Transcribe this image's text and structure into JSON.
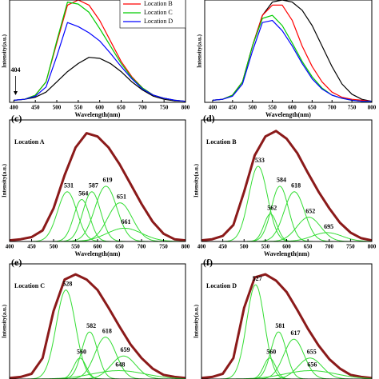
{
  "chart_data": [
    {
      "type": "line",
      "xlabel": "Wavelength(nm)",
      "ylabel": "Intensity(a.u.)",
      "x": [
        400,
        425,
        450,
        475,
        500,
        525,
        550,
        575,
        600,
        625,
        650,
        675,
        700,
        725,
        750,
        775,
        800
      ],
      "xlim": [
        390,
        800
      ],
      "xticks": [
        400,
        450,
        500,
        550,
        600,
        650,
        700,
        750,
        800
      ],
      "ylim": [
        0,
        1.0
      ],
      "annotation": {
        "text": "404",
        "x": 404
      },
      "legend": "upper right",
      "series": [
        {
          "color": "#000000",
          "values": [
            0.02,
            0.03,
            0.05,
            0.1,
            0.2,
            0.3,
            0.38,
            0.44,
            0.43,
            0.38,
            0.3,
            0.2,
            0.12,
            0.06,
            0.03,
            0.015,
            0.01
          ]
        },
        {
          "name": "Location B",
          "color": "#ff0000",
          "values": [
            0.02,
            0.03,
            0.07,
            0.2,
            0.58,
            0.95,
            1.0,
            0.95,
            0.8,
            0.6,
            0.4,
            0.25,
            0.14,
            0.07,
            0.04,
            0.02,
            0.01
          ]
        },
        {
          "name": "Location C",
          "color": "#00cc00",
          "values": [
            0.02,
            0.03,
            0.07,
            0.2,
            0.6,
            0.98,
            0.96,
            0.88,
            0.72,
            0.55,
            0.38,
            0.24,
            0.14,
            0.07,
            0.04,
            0.02,
            0.01
          ]
        },
        {
          "name": "Location D",
          "color": "#0000ff",
          "values": [
            0.02,
            0.03,
            0.06,
            0.15,
            0.45,
            0.78,
            0.74,
            0.68,
            0.6,
            0.48,
            0.35,
            0.23,
            0.13,
            0.07,
            0.04,
            0.02,
            0.01
          ]
        }
      ]
    },
    {
      "type": "line",
      "xlabel": "Wavelength(nm)",
      "ylabel": "Intensity(a.u.)",
      "x": [
        400,
        425,
        450,
        475,
        500,
        525,
        550,
        575,
        600,
        625,
        650,
        675,
        700,
        725,
        750,
        775,
        800
      ],
      "xlim": [
        380,
        800
      ],
      "xticks": [
        400,
        450,
        500,
        550,
        600,
        650,
        700,
        750,
        800
      ],
      "ylim": [
        0,
        1.0
      ],
      "series": [
        {
          "color": "#000000",
          "values": [
            0.02,
            0.03,
            0.07,
            0.2,
            0.55,
            0.85,
            0.98,
            1.0,
            0.98,
            0.9,
            0.75,
            0.55,
            0.35,
            0.18,
            0.08,
            0.03,
            0.01
          ]
        },
        {
          "color": "#ff0000",
          "values": [
            0.02,
            0.03,
            0.07,
            0.2,
            0.55,
            0.85,
            0.95,
            0.95,
            0.8,
            0.55,
            0.35,
            0.2,
            0.1,
            0.05,
            0.03,
            0.02,
            0.01
          ]
        },
        {
          "color": "#00cc00",
          "values": [
            0.02,
            0.03,
            0.07,
            0.2,
            0.55,
            0.82,
            0.85,
            0.75,
            0.58,
            0.4,
            0.25,
            0.14,
            0.07,
            0.04,
            0.02,
            0.01,
            0.01
          ]
        },
        {
          "color": "#0000ff",
          "values": [
            0.02,
            0.03,
            0.06,
            0.18,
            0.5,
            0.78,
            0.8,
            0.7,
            0.55,
            0.38,
            0.23,
            0.13,
            0.07,
            0.04,
            0.02,
            0.01,
            0.01
          ]
        }
      ]
    },
    {
      "type": "fit",
      "panel_label": "(c)",
      "location": "Location A",
      "xlabel": "Wavelength(nm)",
      "ylabel": "Intensity(a.u.)",
      "x": [
        400,
        425,
        450,
        475,
        500,
        525,
        550,
        575,
        600,
        625,
        650,
        675,
        700,
        725,
        750,
        775,
        800
      ],
      "xlim": [
        400,
        800
      ],
      "xticks": [
        400,
        450,
        500,
        550,
        600,
        650,
        700,
        750,
        800
      ],
      "ylim": [
        0,
        1.1
      ],
      "series": [
        {
          "color": "#8b1a1a",
          "values": [
            0.01,
            0.02,
            0.04,
            0.1,
            0.3,
            0.6,
            0.85,
            0.98,
            0.95,
            0.85,
            0.7,
            0.52,
            0.34,
            0.18,
            0.07,
            0.02,
            0.01
          ]
        }
      ],
      "peak_color": "#33dd33",
      "peaks": [
        {
          "center": 531,
          "height": 0.45,
          "width": 22
        },
        {
          "center": 564,
          "height": 0.38,
          "width": 18
        },
        {
          "center": 587,
          "height": 0.45,
          "width": 20
        },
        {
          "center": 619,
          "height": 0.5,
          "width": 25
        },
        {
          "center": 651,
          "height": 0.35,
          "width": 28
        },
        {
          "center": 661,
          "height": 0.12,
          "width": 40
        }
      ]
    },
    {
      "type": "fit",
      "panel_label": "(d)",
      "location": "Location B",
      "xlabel": "Wavelength(nm)",
      "ylabel": "Intensity(a.u.)",
      "x": [
        400,
        425,
        450,
        475,
        500,
        525,
        550,
        575,
        600,
        625,
        650,
        675,
        700,
        725,
        750,
        775,
        800
      ],
      "xlim": [
        400,
        800
      ],
      "xticks": [
        400,
        450,
        500,
        550,
        600,
        650,
        700,
        750,
        800
      ],
      "ylim": [
        0,
        1.1
      ],
      "series": [
        {
          "color": "#8b1a1a",
          "values": [
            0.01,
            0.02,
            0.05,
            0.15,
            0.45,
            0.78,
            0.95,
            1.0,
            0.93,
            0.8,
            0.62,
            0.45,
            0.3,
            0.17,
            0.08,
            0.03,
            0.01
          ]
        }
      ],
      "peak_color": "#33dd33",
      "peaks": [
        {
          "center": 533,
          "height": 0.68,
          "width": 22
        },
        {
          "center": 562,
          "height": 0.25,
          "width": 15
        },
        {
          "center": 584,
          "height": 0.5,
          "width": 20
        },
        {
          "center": 618,
          "height": 0.45,
          "width": 24
        },
        {
          "center": 652,
          "height": 0.22,
          "width": 28
        },
        {
          "center": 695,
          "height": 0.08,
          "width": 35
        }
      ]
    },
    {
      "type": "fit",
      "panel_label": "(e)",
      "location": "Location C",
      "ylabel": "Intensity(a.u.)",
      "x": [
        400,
        425,
        450,
        475,
        500,
        525,
        550,
        575,
        600,
        625,
        650,
        675,
        700,
        725,
        750,
        775,
        800
      ],
      "xlim": [
        400,
        800
      ],
      "ylim": [
        0,
        1.1
      ],
      "series": [
        {
          "color": "#8b1a1a",
          "values": [
            0.01,
            0.02,
            0.05,
            0.2,
            0.65,
            0.95,
            1.0,
            0.95,
            0.85,
            0.68,
            0.5,
            0.33,
            0.2,
            0.1,
            0.04,
            0.02,
            0.01
          ]
        }
      ],
      "peak_color": "#33dd33",
      "peaks": [
        {
          "center": 528,
          "height": 0.85,
          "width": 22
        },
        {
          "center": 560,
          "height": 0.2,
          "width": 14
        },
        {
          "center": 582,
          "height": 0.45,
          "width": 18
        },
        {
          "center": 618,
          "height": 0.4,
          "width": 24
        },
        {
          "center": 659,
          "height": 0.22,
          "width": 28
        },
        {
          "center": 648,
          "height": 0.08,
          "width": 60
        }
      ]
    },
    {
      "type": "fit",
      "panel_label": "(f)",
      "location": "Location D",
      "ylabel": "Intensity(a.u.)",
      "x": [
        400,
        425,
        450,
        475,
        500,
        525,
        550,
        575,
        600,
        625,
        650,
        675,
        700,
        725,
        750,
        775,
        800
      ],
      "xlim": [
        400,
        800
      ],
      "ylim": [
        0,
        1.1
      ],
      "series": [
        {
          "color": "#8b1a1a",
          "values": [
            0.01,
            0.02,
            0.05,
            0.2,
            0.68,
            0.97,
            1.0,
            0.94,
            0.83,
            0.66,
            0.48,
            0.32,
            0.19,
            0.1,
            0.04,
            0.02,
            0.01
          ]
        }
      ],
      "peak_color": "#33dd33",
      "peaks": [
        {
          "center": 527,
          "height": 0.9,
          "width": 21
        },
        {
          "center": 560,
          "height": 0.2,
          "width": 14
        },
        {
          "center": 581,
          "height": 0.45,
          "width": 18
        },
        {
          "center": 617,
          "height": 0.38,
          "width": 24
        },
        {
          "center": 655,
          "height": 0.2,
          "width": 28
        },
        {
          "center": 656,
          "height": 0.08,
          "width": 60
        }
      ]
    }
  ]
}
